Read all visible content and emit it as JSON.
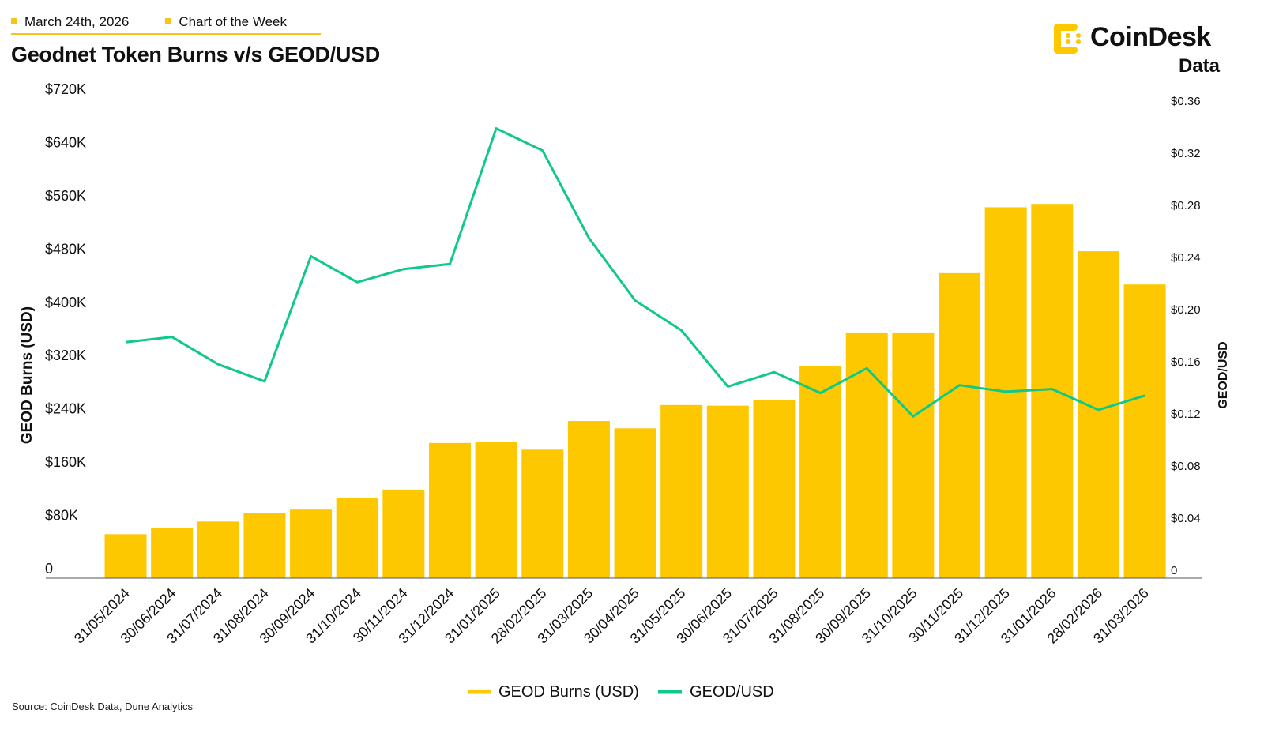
{
  "header": {
    "date": "March 24th, 2026",
    "series_label": "Chart of the Week"
  },
  "title": "Geodnet Token Burns v/s GEOD/USD",
  "logo": {
    "name": "CoinDesk",
    "sub": "Data"
  },
  "source": "Source: CoinDesk Data, Dune Analytics",
  "colors": {
    "bars": "#fdc800",
    "line": "#10c987",
    "accent": "#f5c518"
  },
  "chart_data": {
    "type": "bar+line",
    "title": "Geodnet Token Burns v/s GEOD/USD",
    "categories": [
      "31/05/2024",
      "30/06/2024",
      "31/07/2024",
      "31/08/2024",
      "30/09/2024",
      "31/10/2024",
      "30/11/2024",
      "31/12/2024",
      "31/01/2025",
      "28/02/2025",
      "31/03/2025",
      "30/04/2025",
      "31/05/2025",
      "30/06/2025",
      "31/07/2025",
      "31/08/2025",
      "30/09/2025",
      "31/10/2025",
      "30/11/2025",
      "31/12/2025",
      "31/01/2026",
      "28/02/2026",
      "31/03/2026"
    ],
    "series": [
      {
        "name": "GEOD Burns (USD)",
        "type": "bar",
        "axis": "left",
        "values": [
          66000,
          75000,
          85000,
          98000,
          103000,
          120000,
          133000,
          203000,
          205000,
          193000,
          236000,
          225000,
          260000,
          259000,
          268000,
          319000,
          369000,
          369000,
          458000,
          557000,
          562000,
          491000,
          441000
        ]
      },
      {
        "name": "GEOD/USD",
        "type": "line",
        "axis": "right",
        "values": [
          0.175,
          0.179,
          0.158,
          0.145,
          0.241,
          0.221,
          0.231,
          0.235,
          0.339,
          0.322,
          0.255,
          0.207,
          0.184,
          0.141,
          0.152,
          0.136,
          0.155,
          0.118,
          0.142,
          0.137,
          0.139,
          0.123,
          0.134
        ]
      }
    ],
    "ylabel": "GEOD Burns (USD)",
    "ylim": [
      0,
      720000
    ],
    "yticks": [
      "0",
      "$80K",
      "$160K",
      "$240K",
      "$320K",
      "$400K",
      "$480K",
      "$560K",
      "$640K",
      "$720K"
    ],
    "y2label": "GEOD/USD",
    "y2lim": [
      0,
      0.36
    ],
    "y2ticks": [
      "0",
      "$0.04",
      "$0.08",
      "$0.12",
      "$0.16",
      "$0.20",
      "$0.24",
      "$0.28",
      "$0.32",
      "$0.36"
    ],
    "grid": false,
    "legend": "bottom"
  }
}
